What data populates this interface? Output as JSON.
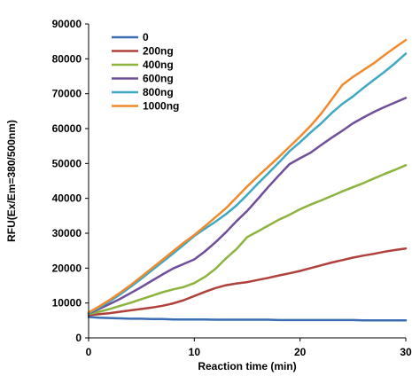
{
  "chart_data": {
    "type": "line",
    "title": "",
    "xlabel": "Reaction time (min)",
    "ylabel": "RFU(Ex/Em=380/500nm)",
    "xlim": [
      0,
      30
    ],
    "ylim": [
      0,
      90000
    ],
    "xticks": [
      0,
      10,
      20,
      30
    ],
    "yticks": [
      0,
      10000,
      20000,
      30000,
      40000,
      50000,
      60000,
      70000,
      80000,
      90000
    ],
    "grid": false,
    "legend_position": "top-left",
    "x": [
      0,
      1,
      2,
      3,
      4,
      5,
      6,
      7,
      8,
      9,
      10,
      11,
      12,
      13,
      14,
      15,
      16,
      17,
      18,
      19,
      20,
      21,
      22,
      23,
      24,
      25,
      26,
      27,
      28,
      29,
      30
    ],
    "series": [
      {
        "name": "0",
        "color": "#3A6DB1",
        "values": [
          6000,
          5800,
          5700,
          5600,
          5500,
          5500,
          5400,
          5400,
          5300,
          5300,
          5300,
          5300,
          5200,
          5200,
          5200,
          5200,
          5200,
          5200,
          5100,
          5100,
          5100,
          5100,
          5100,
          5100,
          5100,
          5100,
          5000,
          5000,
          5000,
          5000,
          5000
        ]
      },
      {
        "name": "200ng",
        "color": "#B0403C",
        "values": [
          6500,
          6800,
          7100,
          7500,
          7900,
          8300,
          8700,
          9200,
          9900,
          10800,
          12000,
          13200,
          14300,
          15100,
          15600,
          16000,
          16600,
          17200,
          17900,
          18500,
          19200,
          20000,
          20800,
          21600,
          22300,
          23000,
          23600,
          24100,
          24700,
          25200,
          25600
        ]
      },
      {
        "name": "400ng",
        "color": "#8DB33F",
        "values": [
          6800,
          7500,
          8300,
          9200,
          10100,
          11100,
          12100,
          13100,
          13900,
          14600,
          15700,
          17500,
          19800,
          22800,
          25500,
          28900,
          30500,
          32200,
          33900,
          35300,
          36900,
          38200,
          39400,
          40700,
          42000,
          43200,
          44400,
          45700,
          47000,
          48200,
          49500
        ]
      },
      {
        "name": "600ng",
        "color": "#6F4E9A",
        "values": [
          7000,
          8300,
          9700,
          11200,
          12900,
          14600,
          16400,
          18200,
          19900,
          21200,
          22500,
          24800,
          27400,
          30300,
          33500,
          36400,
          39800,
          43300,
          46600,
          49800,
          51500,
          53100,
          55300,
          57400,
          59400,
          61500,
          63200,
          64800,
          66200,
          67500,
          68800
        ]
      },
      {
        "name": "800ng",
        "color": "#3FA8C2",
        "values": [
          7100,
          8700,
          10500,
          12500,
          14700,
          17000,
          19400,
          21800,
          24200,
          26700,
          29200,
          31300,
          33300,
          35500,
          38000,
          41000,
          44200,
          47200,
          50300,
          53500,
          56100,
          58900,
          61500,
          64500,
          67100,
          69200,
          71700,
          74000,
          76300,
          78800,
          81500
        ]
      },
      {
        "name": "1000ng",
        "color": "#F08A2C",
        "values": [
          7300,
          9000,
          10900,
          13000,
          15200,
          17600,
          20000,
          22400,
          24900,
          27300,
          29500,
          32000,
          34600,
          37200,
          40300,
          43400,
          46300,
          49100,
          51900,
          54800,
          57700,
          60800,
          64300,
          68400,
          72500,
          74800,
          76800,
          78800,
          81100,
          83300,
          85400
        ]
      }
    ]
  }
}
